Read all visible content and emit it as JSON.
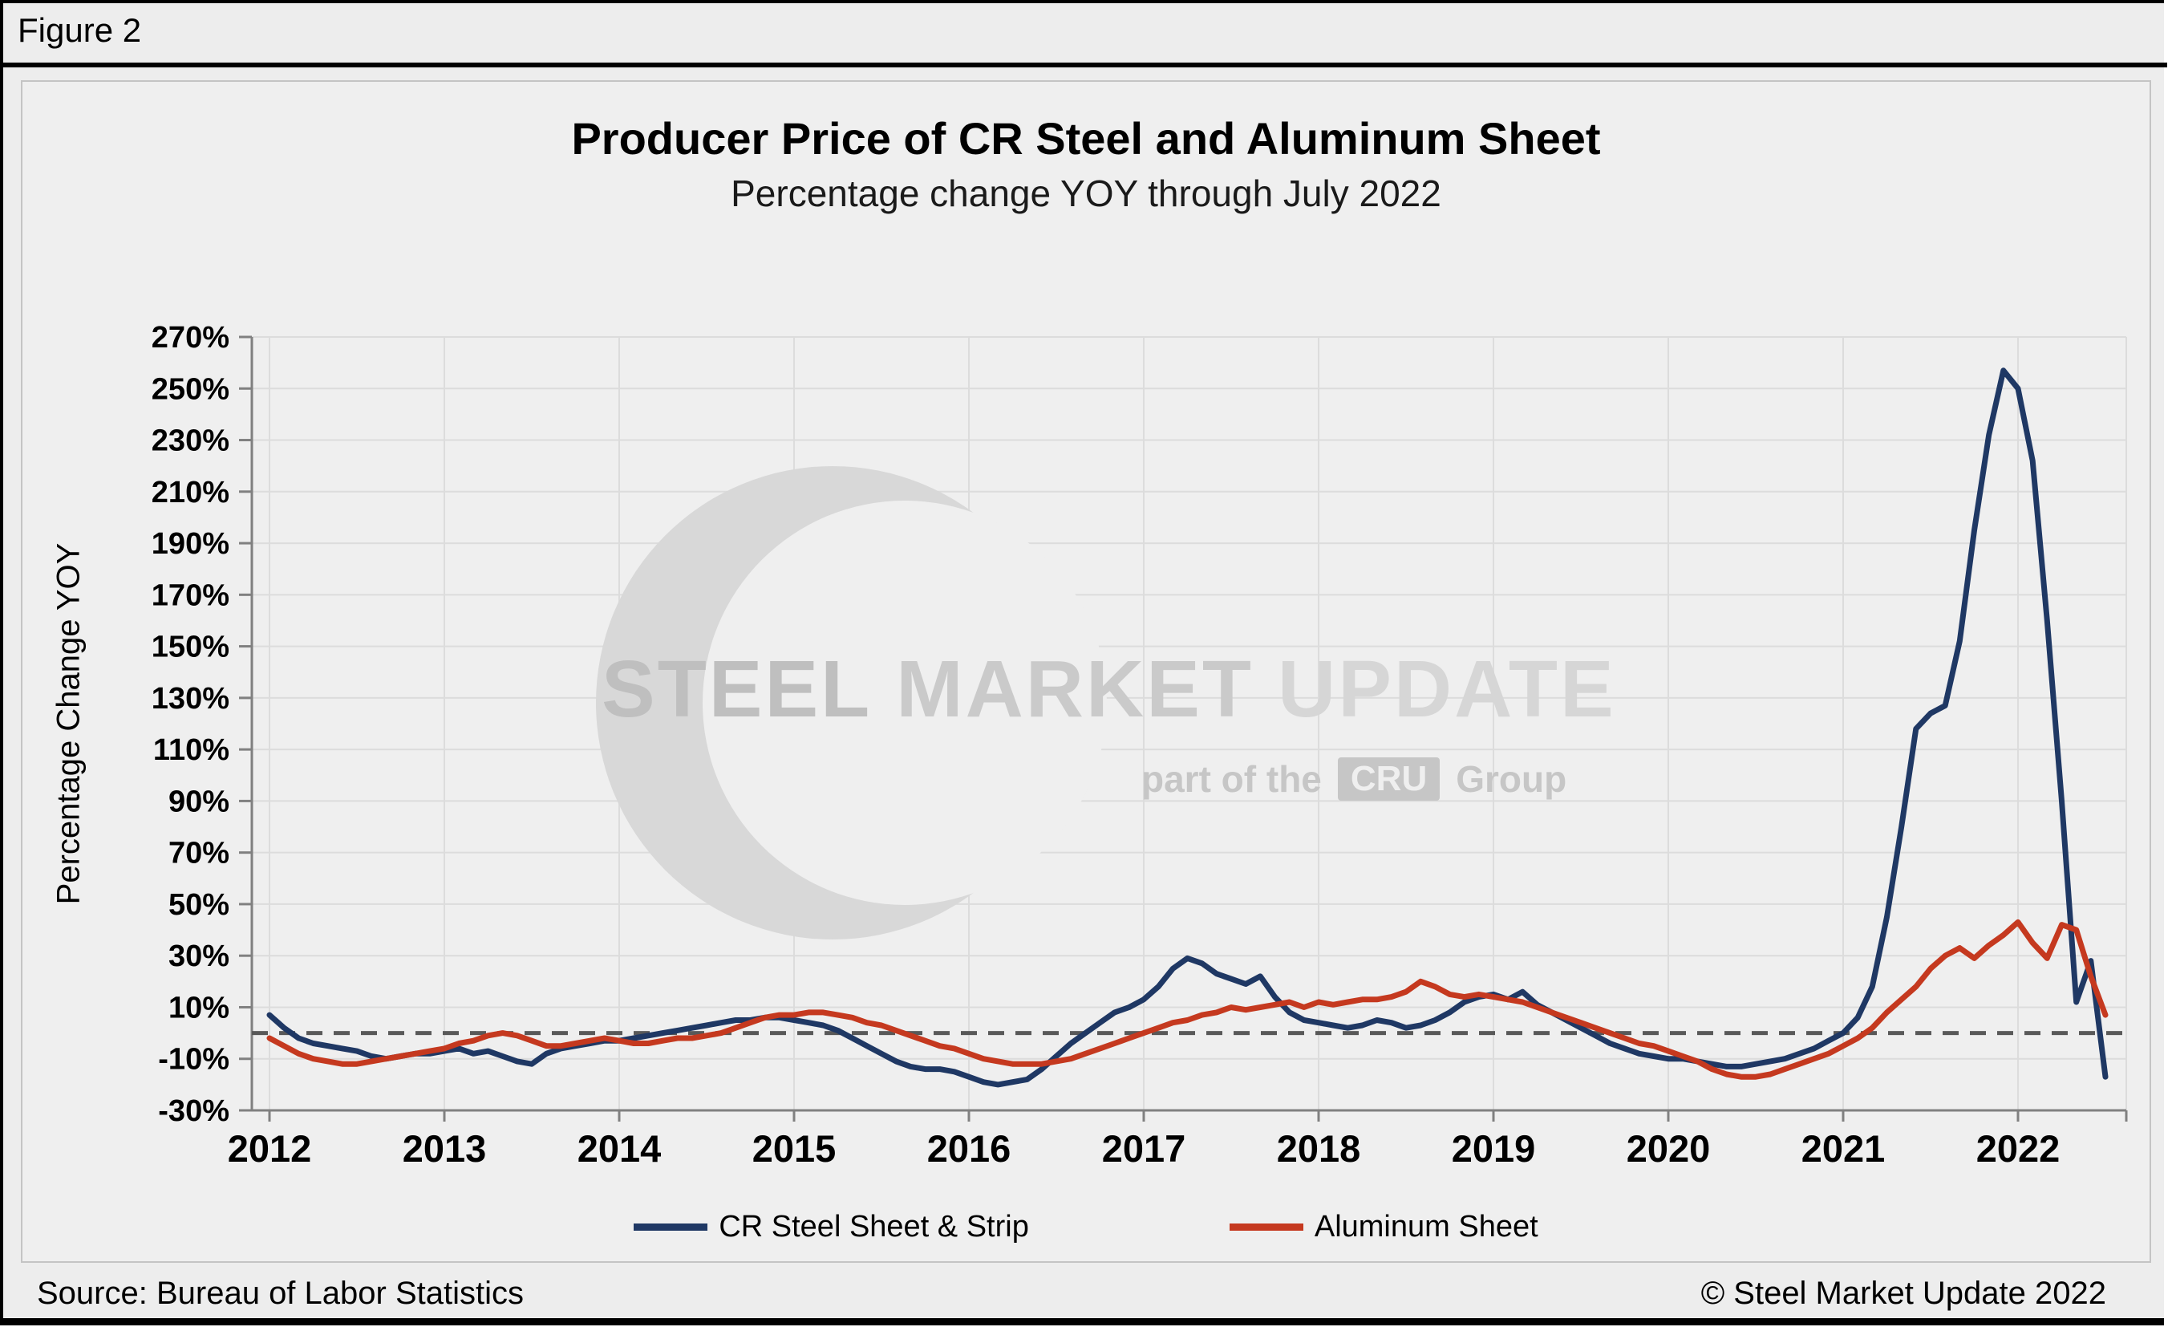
{
  "figure": {
    "label": "Figure 2"
  },
  "chart_data": {
    "type": "line",
    "title": "Producer Price of CR Steel and Aluminum Sheet",
    "subtitle": "Percentage change YOY through July 2022",
    "ylabel": "Percentage Change YOY",
    "ylim": [
      -30,
      270
    ],
    "ytick_step": 20,
    "ytick_labels": [
      "270%",
      "250%",
      "230%",
      "210%",
      "190%",
      "170%",
      "150%",
      "130%",
      "110%",
      "90%",
      "70%",
      "50%",
      "30%",
      "10%",
      "-10%",
      "-30%"
    ],
    "x_year_labels": [
      "2012",
      "2013",
      "2014",
      "2015",
      "2016",
      "2017",
      "2018",
      "2019",
      "2020",
      "2021",
      "2022"
    ],
    "x_start": "2012-01",
    "x_end": "2022-07",
    "grid": true,
    "zero_line": true,
    "legend_position": "bottom",
    "series": [
      {
        "name": "CR Steel Sheet & Strip",
        "color": "#1F3864",
        "values": [
          7,
          2,
          -2,
          -4,
          -5,
          -6,
          -7,
          -9,
          -10,
          -9,
          -8,
          -8,
          -7,
          -6,
          -8,
          -7,
          -9,
          -11,
          -12,
          -8,
          -6,
          -5,
          -4,
          -3,
          -3,
          -2,
          -1,
          0,
          1,
          2,
          3,
          4,
          5,
          5,
          6,
          6,
          5,
          4,
          3,
          1,
          -2,
          -5,
          -8,
          -11,
          -13,
          -14,
          -14,
          -15,
          -17,
          -19,
          -20,
          -19,
          -18,
          -14,
          -9,
          -4,
          0,
          4,
          8,
          10,
          13,
          18,
          25,
          29,
          27,
          23,
          21,
          19,
          22,
          14,
          8,
          5,
          4,
          3,
          2,
          3,
          5,
          4,
          2,
          3,
          5,
          8,
          12,
          14,
          15,
          13,
          16,
          11,
          8,
          5,
          2,
          -1,
          -4,
          -6,
          -8,
          -9,
          -10,
          -10,
          -11,
          -12,
          -13,
          -13,
          -12,
          -11,
          -10,
          -8,
          -6,
          -3,
          0,
          6,
          18,
          45,
          80,
          118,
          124,
          127,
          152,
          195,
          232,
          257,
          250,
          222,
          160,
          90,
          12,
          28,
          -17
        ]
      },
      {
        "name": "Aluminum Sheet",
        "color": "#C5391F",
        "values": [
          -2,
          -5,
          -8,
          -10,
          -11,
          -12,
          -12,
          -11,
          -10,
          -9,
          -8,
          -7,
          -6,
          -4,
          -3,
          -1,
          0,
          -1,
          -3,
          -5,
          -5,
          -4,
          -3,
          -2,
          -3,
          -4,
          -4,
          -3,
          -2,
          -2,
          -1,
          0,
          2,
          4,
          6,
          7,
          7,
          8,
          8,
          7,
          6,
          4,
          3,
          1,
          -1,
          -3,
          -5,
          -6,
          -8,
          -10,
          -11,
          -12,
          -12,
          -12,
          -11,
          -10,
          -8,
          -6,
          -4,
          -2,
          0,
          2,
          4,
          5,
          7,
          8,
          10,
          9,
          10,
          11,
          12,
          10,
          12,
          11,
          12,
          13,
          13,
          14,
          16,
          20,
          18,
          15,
          14,
          15,
          14,
          13,
          12,
          10,
          8,
          6,
          4,
          2,
          0,
          -2,
          -4,
          -5,
          -7,
          -9,
          -11,
          -14,
          -16,
          -17,
          -17,
          -16,
          -14,
          -12,
          -10,
          -8,
          -5,
          -2,
          2,
          8,
          13,
          18,
          25,
          30,
          33,
          29,
          34,
          38,
          43,
          35,
          29,
          42,
          40,
          22,
          7
        ]
      }
    ]
  },
  "watermark": {
    "words": [
      "STEEL",
      "MARKET",
      "UPDATE"
    ],
    "tagline_prefix": "part of the",
    "tagline_box": "CRU",
    "tagline_suffix": "Group"
  },
  "footer": {
    "source": "Source: Bureau of Labor Statistics",
    "copyright": "© Steel Market Update 2022"
  }
}
